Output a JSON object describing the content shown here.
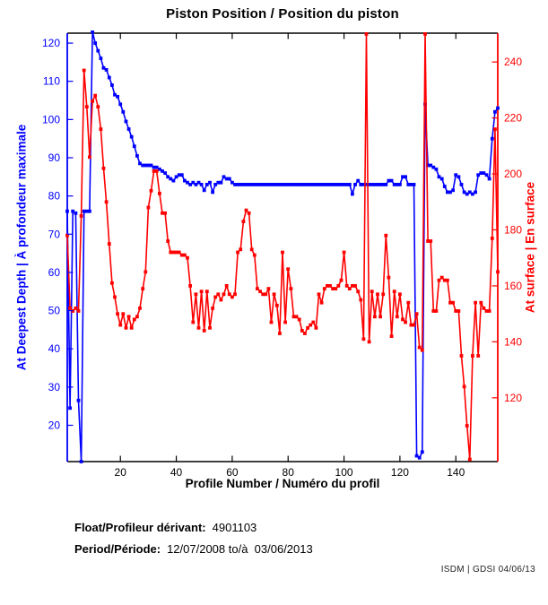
{
  "chart_data": {
    "type": "line",
    "title": "Piston Position / Position du piston",
    "xlabel": "Profile Number / Numéro du profil",
    "ylabel_left": "At Deepest Depth | À profondeur maximale",
    "ylabel_right": "At surface | En surface",
    "grid": false,
    "xlim": [
      1,
      155
    ],
    "ylim_left": [
      10.5,
      122.6
    ],
    "ylim_right": [
      97.2,
      250.3
    ],
    "xticks": [
      20,
      40,
      60,
      80,
      100,
      120,
      140
    ],
    "yticks_left": [
      20,
      30,
      40,
      50,
      60,
      70,
      80,
      90,
      100,
      110,
      120
    ],
    "yticks_right": [
      120,
      140,
      160,
      180,
      200,
      220,
      240
    ],
    "series": [
      {
        "name": "At Deepest Depth | À profondeur maximale",
        "axis": "left",
        "color": "#0000ff",
        "marker": "square",
        "x_start": 1,
        "values": [
          76,
          24.5,
          76,
          75.5,
          26.5,
          10.5,
          76,
          76,
          76,
          123,
          120,
          118,
          116,
          113.5,
          113,
          111,
          109,
          106.5,
          106,
          104,
          102,
          99.5,
          97.5,
          95.5,
          93,
          90.5,
          88.5,
          88,
          88,
          88,
          88,
          87.5,
          87.5,
          87,
          86.5,
          86,
          85,
          84.5,
          84,
          85,
          85.5,
          85.5,
          84,
          83.5,
          83,
          83.5,
          83,
          83.5,
          83,
          81.5,
          83,
          83.5,
          81,
          83,
          83.5,
          83.5,
          85,
          84.5,
          84.5,
          83.5,
          83,
          83,
          83,
          83,
          83,
          83,
          83,
          83,
          83,
          83,
          83,
          83,
          83,
          83,
          83,
          83,
          83,
          83,
          83,
          83,
          83,
          83,
          83,
          83,
          83,
          83,
          83,
          83,
          83,
          83,
          83,
          83,
          83,
          83,
          83,
          83,
          83,
          83,
          83,
          83,
          83,
          83,
          80.5,
          83,
          84,
          83,
          83,
          83,
          83,
          83,
          83,
          83,
          83,
          83,
          83,
          84,
          84,
          83,
          83,
          83,
          85,
          85,
          83,
          83,
          83,
          12,
          11.5,
          13,
          104,
          88,
          88,
          87.5,
          87,
          85,
          84.5,
          82.5,
          81,
          81,
          81.5,
          85.5,
          85,
          83,
          81,
          80.5,
          81,
          80.5,
          81,
          85.5,
          86,
          86,
          85.5,
          84.5,
          95,
          102,
          103
        ]
      },
      {
        "name": "At surface | En surface",
        "axis": "right",
        "color": "#ff0000",
        "marker": "square",
        "x_start": 1,
        "values": [
          178,
          152,
          151,
          152,
          151,
          185,
          237,
          224,
          206,
          226,
          228,
          224,
          216,
          202,
          190,
          175,
          161,
          156,
          150,
          146,
          150,
          145,
          149,
          145,
          148,
          149,
          152,
          159,
          165,
          188,
          194,
          201,
          201,
          193,
          186,
          186,
          176,
          172,
          172,
          172,
          172,
          171,
          171,
          170,
          160,
          147,
          157,
          145,
          158,
          144,
          158,
          145,
          152,
          156,
          157,
          155,
          157,
          160,
          157,
          156,
          157,
          172,
          173,
          183,
          187,
          186,
          173,
          171,
          159,
          158,
          157,
          157,
          159,
          147,
          157,
          153,
          143,
          172,
          147,
          166,
          159,
          149,
          149,
          148,
          144,
          143,
          145,
          146,
          147,
          145,
          157,
          154,
          159,
          160,
          160,
          159,
          159,
          160,
          162,
          172,
          160,
          159,
          160,
          160,
          158,
          155,
          141,
          250,
          140,
          158,
          149,
          157,
          149,
          157,
          178,
          163,
          142,
          158,
          149,
          157,
          148,
          147,
          154,
          146,
          146,
          150,
          138,
          137,
          250,
          176,
          176,
          151,
          151,
          162,
          163,
          162,
          162,
          154,
          154,
          151,
          151,
          135,
          124,
          110,
          98,
          135,
          154,
          135,
          154,
          152,
          151,
          151,
          177,
          216,
          165
        ]
      }
    ]
  },
  "footer": {
    "float_label": "Float/Profileur dérivant:",
    "float_value": "4901103",
    "period_label": "Period/Période:",
    "period_value": "12/07/2008 to/à  03/06/2013",
    "watermark": "ISDM | GDSI 04/06/13"
  },
  "colors": {
    "deep_line": "#0000ff",
    "surface_line": "#ff0000",
    "frame": "#000000",
    "background": "#ffffff"
  }
}
